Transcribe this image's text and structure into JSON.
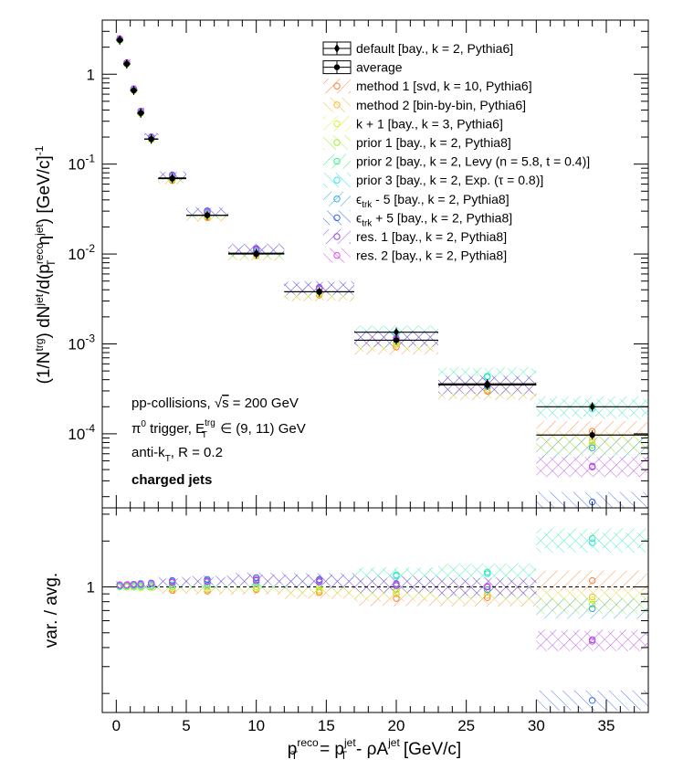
{
  "chart_data": {
    "type": "scatter",
    "x_edges": [
      0,
      0.5,
      1,
      1.5,
      2,
      3,
      5,
      8,
      12,
      17,
      23,
      30,
      38
    ],
    "xlim": [
      -1,
      38
    ],
    "xlabel": {
      "main": "p",
      "sup1": "reco",
      "sub1": "T",
      "eq": "= p",
      "sup2": "jet",
      "sub2": "T",
      "rest": "- ρA",
      "sup3": "jet",
      "unit": "[GeV/c]"
    },
    "top_panel": {
      "ylabel": {
        "p1": "(1/N",
        "sup1": "trg",
        "p2": ") dN",
        "sup2": "jet",
        "p3": "/d(p",
        "sup3": "reco",
        "sub3": "T",
        "p4": "η",
        "sup4": "jet",
        "p5": ") [GeV/c]",
        "sup5": "-1"
      },
      "yscale": "log",
      "ylim": [
        1.5e-05,
        4
      ],
      "yticks": [
        {
          "value": 1,
          "label": "1"
        },
        {
          "value": 0.1,
          "base": "10",
          "exp": "-1"
        },
        {
          "value": 0.01,
          "base": "10",
          "exp": "-2"
        },
        {
          "value": 0.001,
          "base": "10",
          "exp": "-3"
        },
        {
          "value": 0.0001,
          "base": "10",
          "exp": "-4"
        }
      ],
      "default": [
        2.4,
        1.3,
        0.66,
        0.37,
        0.19,
        0.07,
        0.027,
        0.0102,
        0.0038,
        0.00135,
        0.00036,
        0.0002
      ],
      "average": [
        2.4,
        1.3,
        0.66,
        0.37,
        0.19,
        0.069,
        0.027,
        0.01,
        0.0038,
        0.0011,
        0.00035,
        9.7e-05
      ],
      "variations_ratio": [
        [
          1.02,
          1.01,
          1.0,
          1.0,
          1.0,
          0.95,
          0.94,
          0.96,
          0.92,
          0.84,
          0.85,
          1.1
        ],
        [
          1.01,
          1.01,
          1.0,
          1.0,
          1.0,
          0.97,
          0.96,
          0.97,
          0.94,
          0.9,
          0.88,
          0.86
        ],
        [
          1.0,
          1.0,
          1.0,
          0.99,
          0.99,
          0.98,
          0.97,
          0.98,
          0.96,
          0.93,
          0.92,
          0.82
        ],
        [
          1.0,
          1.0,
          1.0,
          1.0,
          1.0,
          1.0,
          1.0,
          1.0,
          1.0,
          0.96,
          0.96,
          0.77
        ],
        [
          1.02,
          1.02,
          1.02,
          1.02,
          1.02,
          1.03,
          1.04,
          1.06,
          1.08,
          1.2,
          1.25,
          2.08
        ],
        [
          1.01,
          1.02,
          1.02,
          1.02,
          1.02,
          1.03,
          1.04,
          1.06,
          1.08,
          1.18,
          1.22,
          1.95
        ],
        [
          1.02,
          1.03,
          1.03,
          1.04,
          1.05,
          1.08,
          1.1,
          1.12,
          1.1,
          1.02,
          0.96,
          0.72
        ],
        [
          1.03,
          1.03,
          1.04,
          1.05,
          1.06,
          1.1,
          1.12,
          1.15,
          1.12,
          1.05,
          1.0,
          0.18
        ],
        [
          1.03,
          1.03,
          1.04,
          1.04,
          1.05,
          1.07,
          1.08,
          1.1,
          1.08,
          1.02,
          1.0,
          0.45
        ],
        [
          1.03,
          1.03,
          1.04,
          1.04,
          1.05,
          1.08,
          1.09,
          1.12,
          1.1,
          1.04,
          1.01,
          0.44
        ]
      ]
    },
    "bottom_panel": {
      "ylabel": "var. / avg.",
      "yscale": "log",
      "ylim": [
        0.15,
        3.3
      ],
      "yticks": [
        {
          "value": 1,
          "label": "1"
        }
      ]
    },
    "xticks": [
      0,
      5,
      10,
      15,
      20,
      25,
      30,
      35
    ],
    "legend": {
      "placement": "top-right",
      "entries": [
        {
          "main": "default [bay., k = 2, Pythia6]",
          "color": "#000000",
          "marker": "diamond-filled"
        },
        {
          "main": "average",
          "color": "#000000",
          "marker": "circle-filled"
        },
        {
          "main": "method 1 [svd, k = 10, Pythia6]",
          "color": "#ff7f33",
          "marker": "circle-open"
        },
        {
          "main": "method 2 [bin-by-bin, Pythia6]",
          "color": "#ffb833",
          "marker": "circle-open"
        },
        {
          "main": "k + 1 [bay., k = 3, Pythia6]",
          "color": "#d7f233",
          "marker": "circle-open"
        },
        {
          "main": "prior 1 [bay., k = 2, Pythia8]",
          "color": "#9cf233",
          "marker": "circle-open"
        },
        {
          "main": "prior 2 [bay., k = 2, Levy (n = 5.8, t = 0.4)]",
          "color": "#33f28c",
          "marker": "circle-open"
        },
        {
          "main": "prior 3 [bay., k = 2, Exp. (τ = 0.8)]",
          "color": "#33e6e6",
          "marker": "circle-open"
        },
        {
          "pre": "ϵ",
          "sub": "trk",
          "post": " - 5 [bay., k = 2, Pythia8]",
          "color": "#33a6f2",
          "marker": "circle-open"
        },
        {
          "pre": "ϵ",
          "sub": "trk",
          "post": " + 5 [bay., k = 2, Pythia8]",
          "color": "#3366f2",
          "marker": "circle-open"
        },
        {
          "main": "res. 1 [bay., k = 2, Pythia8]",
          "color": "#8c4ce6",
          "marker": "circle-open"
        },
        {
          "main": "res. 2 [bay., k = 2, Pythia8]",
          "color": "#d94ce6",
          "marker": "circle-open"
        }
      ]
    },
    "annotations": {
      "line1": {
        "pre": "pp-collisions, ",
        "root": "√",
        "s": "s",
        "post": " = 200 GeV"
      },
      "line2": {
        "pi": "π",
        "pisup": "0",
        "mid": " trigger, E",
        "sup": "trg",
        "sub": "T",
        "post": " ∈ (9, 11) GeV"
      },
      "line3": {
        "pre": "anti-k",
        "sub": "T",
        "post": ", R = 0.2"
      },
      "line4": "charged jets"
    }
  }
}
